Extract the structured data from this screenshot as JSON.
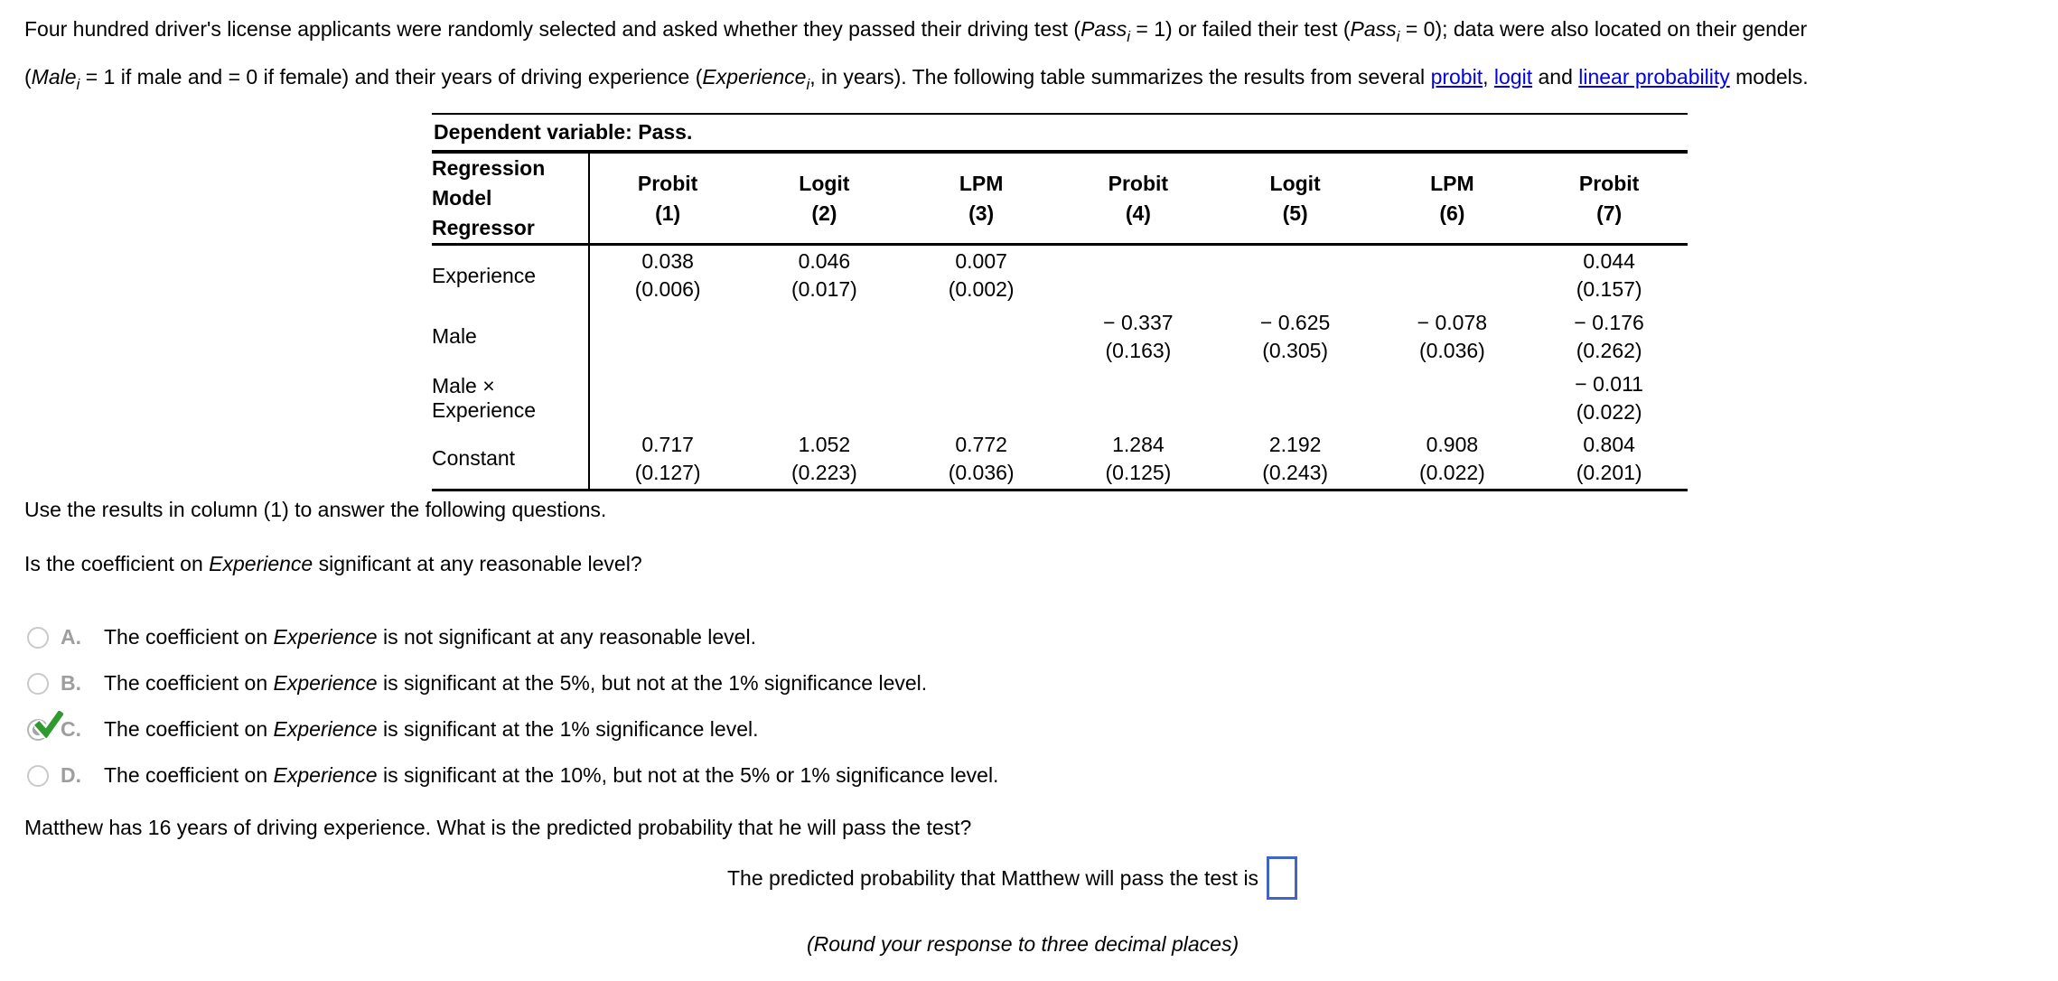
{
  "intro": {
    "lines": [
      {
        "segments": [
          {
            "t": "Four hundred driver's license applicants were randomly selected and asked whether they passed their driving test ("
          },
          {
            "t": "Pass",
            "style": "italic"
          },
          {
            "t": "i",
            "style": "subitalic"
          },
          {
            "t": " = 1) or failed their test ("
          },
          {
            "t": "Pass",
            "style": "italic"
          },
          {
            "t": "i",
            "style": "subitalic"
          },
          {
            "t": " = 0); data were also located on their gender"
          }
        ]
      },
      {
        "segments": [
          {
            "t": "("
          },
          {
            "t": "Male",
            "style": "italic"
          },
          {
            "t": "i",
            "style": "subitalic"
          },
          {
            "t": " = 1 if male and = 0 if female) and their years of driving experience ("
          },
          {
            "t": "Experience",
            "style": "italic"
          },
          {
            "t": "i",
            "style": "subitalic"
          },
          {
            "t": ", in years). The following table summarizes the results from several "
          },
          {
            "t": "probit",
            "style": "link"
          },
          {
            "t": ", "
          },
          {
            "t": "logit",
            "style": "link"
          },
          {
            "t": " and "
          },
          {
            "t": "linear probability",
            "style": "link"
          },
          {
            "t": " models."
          }
        ]
      }
    ]
  },
  "table": {
    "dependent_label": "Dependent variable: Pass.",
    "header": {
      "left_line1": "Regression Model",
      "left_line2": "Regressor",
      "columns": [
        {
          "model": "Probit",
          "num": "(1)"
        },
        {
          "model": "Logit",
          "num": "(2)"
        },
        {
          "model": "LPM",
          "num": "(3)"
        },
        {
          "model": "Probit",
          "num": "(4)"
        },
        {
          "model": "Logit",
          "num": "(5)"
        },
        {
          "model": "LPM",
          "num": "(6)"
        },
        {
          "model": "Probit",
          "num": "(7)"
        }
      ]
    },
    "rows": [
      {
        "label": "Experience",
        "cells": [
          {
            "est": "0.038",
            "se": "(0.006)"
          },
          {
            "est": "0.046",
            "se": "(0.017)"
          },
          {
            "est": "0.007",
            "se": "(0.002)"
          },
          null,
          null,
          null,
          {
            "est": "0.044",
            "se": "(0.157)"
          }
        ]
      },
      {
        "label": "Male",
        "cells": [
          null,
          null,
          null,
          {
            "est": "− 0.337",
            "se": "(0.163)"
          },
          {
            "est": "− 0.625",
            "se": "(0.305)"
          },
          {
            "est": "− 0.078",
            "se": "(0.036)"
          },
          {
            "est": "− 0.176",
            "se": "(0.262)"
          }
        ]
      },
      {
        "label": "Male × Experience",
        "cells": [
          null,
          null,
          null,
          null,
          null,
          null,
          {
            "est": "− 0.011",
            "se": "(0.022)"
          }
        ]
      },
      {
        "label": "Constant",
        "cells": [
          {
            "est": "0.717",
            "se": "(0.127)"
          },
          {
            "est": "1.052",
            "se": "(0.223)"
          },
          {
            "est": "0.772",
            "se": "(0.036)"
          },
          {
            "est": "1.284",
            "se": "(0.125)"
          },
          {
            "est": "2.192",
            "se": "(0.243)"
          },
          {
            "est": "0.908",
            "se": "(0.022)"
          },
          {
            "est": "0.804",
            "se": "(0.201)"
          }
        ]
      }
    ]
  },
  "instructions": "Use the results in column (1) to answer the following questions.",
  "question1": {
    "segments": [
      {
        "t": "Is the coefficient on "
      },
      {
        "t": "Experience",
        "style": "italic"
      },
      {
        "t": " significant at any reasonable level?"
      }
    ]
  },
  "options": [
    {
      "letter": "A.",
      "selected": false,
      "segments": [
        {
          "t": "The coefficient on "
        },
        {
          "t": "Experience",
          "style": "italic"
        },
        {
          "t": " is not significant at any reasonable level."
        }
      ]
    },
    {
      "letter": "B.",
      "selected": false,
      "segments": [
        {
          "t": "The coefficient on "
        },
        {
          "t": "Experience",
          "style": "italic"
        },
        {
          "t": " is significant at the 5%, but not at the 1% significance level."
        }
      ]
    },
    {
      "letter": "C.",
      "selected": true,
      "segments": [
        {
          "t": "The coefficient on "
        },
        {
          "t": "Experience",
          "style": "italic"
        },
        {
          "t": " is significant at the 1% significance level."
        }
      ]
    },
    {
      "letter": "D.",
      "selected": false,
      "segments": [
        {
          "t": "The coefficient on "
        },
        {
          "t": "Experience",
          "style": "italic"
        },
        {
          "t": " is significant at the 10%, but not at the 5% or 1% significance level."
        }
      ]
    }
  ],
  "question2": "Matthew has 16 years of driving experience. What is the predicted probability that he will pass the test?",
  "answer_line": {
    "text": "The predicted probability that Matthew will pass the test is",
    "input_value": ""
  },
  "round_note": "(Round your response to three decimal places)",
  "colors": {
    "link": "#0000EE",
    "answer_box_border": "#4064c8",
    "check_green": "#2f9b2f",
    "option_letter_gray": "#9e9e9e"
  }
}
